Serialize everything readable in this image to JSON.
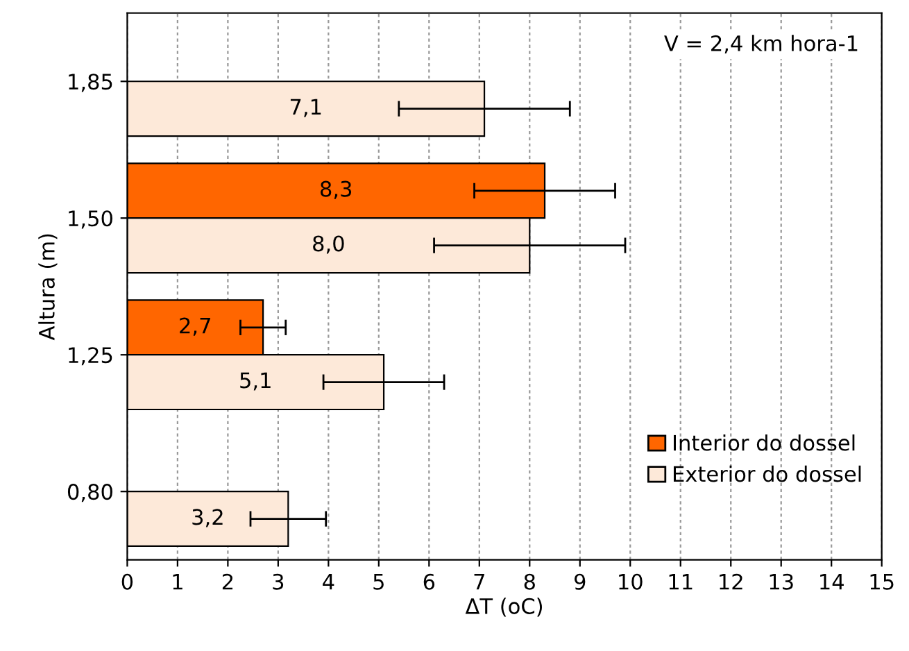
{
  "chart_data": {
    "type": "bar",
    "orientation": "horizontal",
    "categories": [
      "1,85",
      "1,50",
      "1,25",
      "0,80"
    ],
    "series": [
      {
        "name": "Interior do dossel",
        "color": "#ff6600",
        "values": [
          null,
          8.3,
          2.7,
          null
        ],
        "errors": [
          null,
          1.4,
          0.45,
          null
        ],
        "value_labels": [
          null,
          "8,3",
          "2,7",
          null
        ]
      },
      {
        "name": "Exterior do dossel",
        "color": "#fde9d9",
        "values": [
          7.1,
          8.0,
          5.1,
          3.2
        ],
        "errors": [
          1.7,
          1.9,
          1.2,
          0.75
        ],
        "value_labels": [
          "7,1",
          "8,0",
          "5,1",
          "3,2"
        ]
      }
    ],
    "xlim": [
      0,
      15
    ],
    "xticks": [
      0,
      1,
      2,
      3,
      4,
      5,
      6,
      7,
      8,
      9,
      10,
      11,
      12,
      13,
      14,
      15
    ],
    "xlabel": "ΔT (oC)",
    "ylabel": "Altura (m)",
    "annotations": [
      "V = 2,4 km hora-1"
    ],
    "grid": "x",
    "legend": "bottom right"
  }
}
